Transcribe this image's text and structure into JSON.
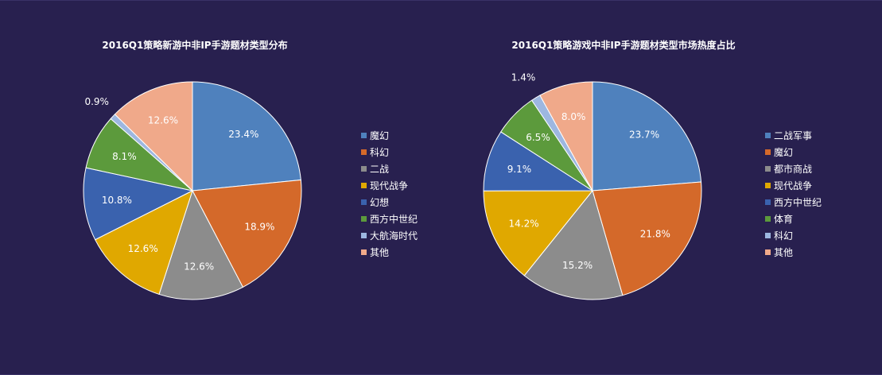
{
  "chart_data": [
    {
      "type": "pie",
      "title": "2016Q1策略新游中非IP手游题材类型分布",
      "slices": [
        {
          "label": "魔幻",
          "value": 23.4,
          "value_label": "23.4%",
          "color": "#4f81bd"
        },
        {
          "label": "科幻",
          "value": 18.9,
          "value_label": "18.9%",
          "color": "#d4692a"
        },
        {
          "label": "二战",
          "value": 12.6,
          "value_label": "12.6%",
          "color": "#8c8c8c"
        },
        {
          "label": "现代战争",
          "value": 12.6,
          "value_label": "12.6%",
          "color": "#e0a800"
        },
        {
          "label": "幻想",
          "value": 10.8,
          "value_label": "10.8%",
          "color": "#3a62ae"
        },
        {
          "label": "西方中世纪",
          "value": 8.1,
          "value_label": "8.1%",
          "color": "#5c9a3c"
        },
        {
          "label": "大航海时代",
          "value": 0.9,
          "value_label": "0.9%",
          "color": "#9db7e0"
        },
        {
          "label": "其他",
          "value": 12.6,
          "value_label": "12.6%",
          "color": "#f0a98a"
        }
      ],
      "legend_position": "right"
    },
    {
      "type": "pie",
      "title": "2016Q1策略游戏中非IP手游题材类型市场热度占比",
      "slices": [
        {
          "label": "二战军事",
          "value": 23.7,
          "value_label": "23.7%",
          "color": "#4f81bd"
        },
        {
          "label": "魔幻",
          "value": 21.8,
          "value_label": "21.8%",
          "color": "#d4692a"
        },
        {
          "label": "都市商战",
          "value": 15.2,
          "value_label": "15.2%",
          "color": "#8c8c8c"
        },
        {
          "label": "现代战争",
          "value": 14.2,
          "value_label": "14.2%",
          "color": "#e0a800"
        },
        {
          "label": "西方中世纪",
          "value": 9.1,
          "value_label": "9.1%",
          "color": "#3a62ae"
        },
        {
          "label": "体育",
          "value": 6.5,
          "value_label": "6.5%",
          "color": "#5c9a3c"
        },
        {
          "label": "科幻",
          "value": 1.4,
          "value_label": "1.4%",
          "color": "#9db7e0"
        },
        {
          "label": "其他",
          "value": 8.0,
          "value_label": "8.0%",
          "color": "#f0a98a"
        }
      ],
      "legend_position": "right"
    }
  ]
}
